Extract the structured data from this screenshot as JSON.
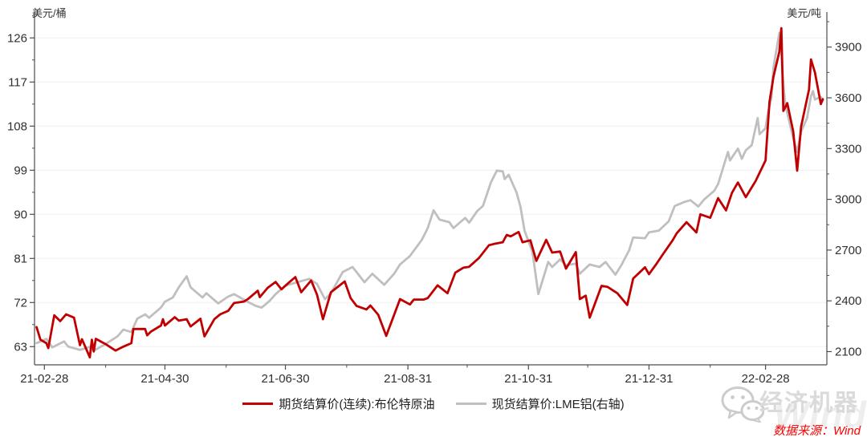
{
  "chart_data": {
    "type": "line",
    "title": "",
    "grid": "horizontal-faint",
    "legend_position": "bottom-center",
    "y_left": {
      "label": "美元/桶",
      "ticks": [
        63,
        72,
        81,
        90,
        99,
        108,
        117,
        126
      ],
      "range_hint": [
        59.3,
        130.5
      ]
    },
    "y_right": {
      "label": "美元/吨",
      "ticks": [
        2100,
        2400,
        2700,
        3000,
        3300,
        3600,
        3900
      ],
      "range_hint": [
        2022,
        4050
      ]
    },
    "x": {
      "ticks": [
        {
          "date": "2021-02-28",
          "label": "21-02-28"
        },
        {
          "date": "2021-04-30",
          "label": "21-04-30"
        },
        {
          "date": "2021-06-30",
          "label": "21-06-30"
        },
        {
          "date": "2021-08-31",
          "label": "21-08-31"
        },
        {
          "date": "2021-10-31",
          "label": "21-10-31"
        },
        {
          "date": "2021-12-31",
          "label": "21-12-31"
        },
        {
          "date": "2022-02-28",
          "label": "22-02-28"
        }
      ],
      "minor_ticks": [
        "2021-03-31",
        "2021-05-31",
        "2021-07-31",
        "2021-09-30",
        "2021-11-30",
        "2022-01-31"
      ]
    },
    "series": [
      {
        "name": "期货结算价(连续):布伦特原油",
        "axis": "left",
        "color": "#C00000",
        "points": [
          [
            "2021-02-24",
            67.0
          ],
          [
            "2021-02-26",
            64.4
          ],
          [
            "2021-03-01",
            63.7
          ],
          [
            "2021-03-02",
            62.7
          ],
          [
            "2021-03-05",
            69.4
          ],
          [
            "2021-03-08",
            68.2
          ],
          [
            "2021-03-11",
            69.6
          ],
          [
            "2021-03-15",
            68.9
          ],
          [
            "2021-03-18",
            63.3
          ],
          [
            "2021-03-19",
            64.5
          ],
          [
            "2021-03-23",
            60.8
          ],
          [
            "2021-03-24",
            64.4
          ],
          [
            "2021-03-25",
            62.0
          ],
          [
            "2021-03-26",
            64.6
          ],
          [
            "2021-03-31",
            63.5
          ],
          [
            "2021-04-05",
            62.2
          ],
          [
            "2021-04-09",
            63.0
          ],
          [
            "2021-04-13",
            63.7
          ],
          [
            "2021-04-14",
            66.6
          ],
          [
            "2021-04-20",
            66.6
          ],
          [
            "2021-04-21",
            65.3
          ],
          [
            "2021-04-23",
            66.1
          ],
          [
            "2021-04-28",
            67.3
          ],
          [
            "2021-04-29",
            68.6
          ],
          [
            "2021-04-30",
            67.3
          ],
          [
            "2021-05-05",
            69.0
          ],
          [
            "2021-05-07",
            68.3
          ],
          [
            "2021-05-11",
            68.6
          ],
          [
            "2021-05-13",
            67.1
          ],
          [
            "2021-05-18",
            68.7
          ],
          [
            "2021-05-20",
            65.1
          ],
          [
            "2021-05-25",
            68.6
          ],
          [
            "2021-05-28",
            69.6
          ],
          [
            "2021-06-01",
            70.3
          ],
          [
            "2021-06-04",
            71.9
          ],
          [
            "2021-06-09",
            72.2
          ],
          [
            "2021-06-11",
            72.7
          ],
          [
            "2021-06-16",
            74.4
          ],
          [
            "2021-06-17",
            73.1
          ],
          [
            "2021-06-21",
            75.0
          ],
          [
            "2021-06-25",
            76.2
          ],
          [
            "2021-06-28",
            74.7
          ],
          [
            "2021-07-01",
            75.8
          ],
          [
            "2021-07-05",
            77.2
          ],
          [
            "2021-07-08",
            74.1
          ],
          [
            "2021-07-13",
            76.5
          ],
          [
            "2021-07-16",
            73.6
          ],
          [
            "2021-07-19",
            68.6
          ],
          [
            "2021-07-23",
            74.1
          ],
          [
            "2021-07-30",
            76.3
          ],
          [
            "2021-08-02",
            72.9
          ],
          [
            "2021-08-05",
            71.3
          ],
          [
            "2021-08-10",
            70.6
          ],
          [
            "2021-08-12",
            71.4
          ],
          [
            "2021-08-16",
            69.5
          ],
          [
            "2021-08-20",
            65.2
          ],
          [
            "2021-08-27",
            72.7
          ],
          [
            "2021-09-01",
            71.6
          ],
          [
            "2021-09-03",
            72.6
          ],
          [
            "2021-09-08",
            72.6
          ],
          [
            "2021-09-10",
            72.9
          ],
          [
            "2021-09-15",
            75.5
          ],
          [
            "2021-09-20",
            73.9
          ],
          [
            "2021-09-24",
            78.1
          ],
          [
            "2021-09-28",
            79.1
          ],
          [
            "2021-10-01",
            79.3
          ],
          [
            "2021-10-06",
            81.1
          ],
          [
            "2021-10-11",
            83.7
          ],
          [
            "2021-10-14",
            84.0
          ],
          [
            "2021-10-18",
            84.3
          ],
          [
            "2021-10-20",
            85.8
          ],
          [
            "2021-10-22",
            85.5
          ],
          [
            "2021-10-26",
            86.4
          ],
          [
            "2021-10-28",
            84.3
          ],
          [
            "2021-11-01",
            84.7
          ],
          [
            "2021-11-04",
            80.5
          ],
          [
            "2021-11-09",
            84.8
          ],
          [
            "2021-11-12",
            82.2
          ],
          [
            "2021-11-16",
            82.4
          ],
          [
            "2021-11-19",
            78.9
          ],
          [
            "2021-11-24",
            82.3
          ],
          [
            "2021-11-26",
            72.7
          ],
          [
            "2021-11-29",
            73.4
          ],
          [
            "2021-12-01",
            68.9
          ],
          [
            "2021-12-07",
            75.4
          ],
          [
            "2021-12-10",
            75.2
          ],
          [
            "2021-12-15",
            73.9
          ],
          [
            "2021-12-20",
            71.5
          ],
          [
            "2021-12-23",
            76.9
          ],
          [
            "2021-12-29",
            79.2
          ],
          [
            "2021-12-31",
            77.8
          ],
          [
            "2022-01-04",
            80.0
          ],
          [
            "2022-01-07",
            81.8
          ],
          [
            "2022-01-12",
            84.7
          ],
          [
            "2022-01-14",
            86.1
          ],
          [
            "2022-01-19",
            88.4
          ],
          [
            "2022-01-24",
            86.3
          ],
          [
            "2022-01-26",
            90.0
          ],
          [
            "2022-01-31",
            89.3
          ],
          [
            "2022-02-04",
            93.3
          ],
          [
            "2022-02-08",
            90.8
          ],
          [
            "2022-02-11",
            94.4
          ],
          [
            "2022-02-14",
            96.5
          ],
          [
            "2022-02-18",
            93.5
          ],
          [
            "2022-02-23",
            96.8
          ],
          [
            "2022-02-28",
            101.0
          ],
          [
            "2022-03-02",
            112.9
          ],
          [
            "2022-03-04",
            118.1
          ],
          [
            "2022-03-07",
            123.2
          ],
          [
            "2022-03-08",
            128.0
          ],
          [
            "2022-03-09",
            111.1
          ],
          [
            "2022-03-11",
            112.7
          ],
          [
            "2022-03-14",
            106.9
          ],
          [
            "2022-03-16",
            98.9
          ],
          [
            "2022-03-18",
            107.9
          ],
          [
            "2022-03-22",
            115.5
          ],
          [
            "2022-03-23",
            121.6
          ],
          [
            "2022-03-25",
            119.0
          ],
          [
            "2022-03-28",
            112.5
          ],
          [
            "2022-03-29",
            113.5
          ]
        ]
      },
      {
        "name": "现货结算价:LME铝(右轴)",
        "axis": "right",
        "color": "#BFBFBF",
        "points": [
          [
            "2021-02-24",
            2150
          ],
          [
            "2021-03-01",
            2175
          ],
          [
            "2021-03-04",
            2125
          ],
          [
            "2021-03-10",
            2160
          ],
          [
            "2021-03-12",
            2130
          ],
          [
            "2021-03-18",
            2110
          ],
          [
            "2021-03-23",
            2128
          ],
          [
            "2021-03-25",
            2105
          ],
          [
            "2021-03-31",
            2145
          ],
          [
            "2021-04-06",
            2190
          ],
          [
            "2021-04-09",
            2230
          ],
          [
            "2021-04-13",
            2215
          ],
          [
            "2021-04-16",
            2295
          ],
          [
            "2021-04-20",
            2320
          ],
          [
            "2021-04-22",
            2300
          ],
          [
            "2021-04-28",
            2360
          ],
          [
            "2021-04-30",
            2395
          ],
          [
            "2021-05-04",
            2420
          ],
          [
            "2021-05-07",
            2480
          ],
          [
            "2021-05-11",
            2545
          ],
          [
            "2021-05-13",
            2480
          ],
          [
            "2021-05-19",
            2420
          ],
          [
            "2021-05-21",
            2445
          ],
          [
            "2021-05-27",
            2385
          ],
          [
            "2021-06-01",
            2425
          ],
          [
            "2021-06-04",
            2440
          ],
          [
            "2021-06-10",
            2400
          ],
          [
            "2021-06-15",
            2370
          ],
          [
            "2021-06-18",
            2360
          ],
          [
            "2021-06-22",
            2400
          ],
          [
            "2021-06-25",
            2440
          ],
          [
            "2021-06-30",
            2490
          ],
          [
            "2021-07-06",
            2510
          ],
          [
            "2021-07-12",
            2530
          ],
          [
            "2021-07-16",
            2500
          ],
          [
            "2021-07-20",
            2410
          ],
          [
            "2021-07-23",
            2445
          ],
          [
            "2021-07-29",
            2570
          ],
          [
            "2021-08-03",
            2600
          ],
          [
            "2021-08-09",
            2510
          ],
          [
            "2021-08-13",
            2560
          ],
          [
            "2021-08-19",
            2495
          ],
          [
            "2021-08-24",
            2560
          ],
          [
            "2021-08-27",
            2615
          ],
          [
            "2021-09-01",
            2665
          ],
          [
            "2021-09-07",
            2760
          ],
          [
            "2021-09-10",
            2830
          ],
          [
            "2021-09-13",
            2935
          ],
          [
            "2021-09-16",
            2880
          ],
          [
            "2021-09-21",
            2865
          ],
          [
            "2021-09-23",
            2830
          ],
          [
            "2021-09-29",
            2890
          ],
          [
            "2021-10-01",
            2862
          ],
          [
            "2021-10-05",
            2930
          ],
          [
            "2021-10-08",
            2962
          ],
          [
            "2021-10-12",
            3100
          ],
          [
            "2021-10-15",
            3170
          ],
          [
            "2021-10-18",
            3165
          ],
          [
            "2021-10-19",
            3120
          ],
          [
            "2021-10-21",
            3145
          ],
          [
            "2021-10-25",
            3040
          ],
          [
            "2021-10-27",
            2955
          ],
          [
            "2021-10-29",
            2815
          ],
          [
            "2021-11-02",
            2690
          ],
          [
            "2021-11-05",
            2440
          ],
          [
            "2021-11-10",
            2630
          ],
          [
            "2021-11-12",
            2600
          ],
          [
            "2021-11-16",
            2645
          ],
          [
            "2021-11-19",
            2610
          ],
          [
            "2021-11-24",
            2620
          ],
          [
            "2021-11-26",
            2560
          ],
          [
            "2021-12-01",
            2615
          ],
          [
            "2021-12-06",
            2600
          ],
          [
            "2021-12-09",
            2630
          ],
          [
            "2021-12-14",
            2555
          ],
          [
            "2021-12-17",
            2610
          ],
          [
            "2021-12-21",
            2700
          ],
          [
            "2021-12-23",
            2775
          ],
          [
            "2021-12-29",
            2770
          ],
          [
            "2021-12-31",
            2805
          ],
          [
            "2022-01-05",
            2815
          ],
          [
            "2022-01-10",
            2870
          ],
          [
            "2022-01-13",
            2960
          ],
          [
            "2022-01-18",
            2985
          ],
          [
            "2022-01-21",
            2995
          ],
          [
            "2022-01-25",
            2958
          ],
          [
            "2022-01-28",
            3000
          ],
          [
            "2022-02-02",
            3050
          ],
          [
            "2022-02-04",
            3090
          ],
          [
            "2022-02-09",
            3280
          ],
          [
            "2022-02-10",
            3230
          ],
          [
            "2022-02-14",
            3300
          ],
          [
            "2022-02-16",
            3240
          ],
          [
            "2022-02-18",
            3290
          ],
          [
            "2022-02-21",
            3320
          ],
          [
            "2022-02-24",
            3480
          ],
          [
            "2022-02-25",
            3385
          ],
          [
            "2022-02-28",
            3420
          ],
          [
            "2022-03-01",
            3500
          ],
          [
            "2022-03-03",
            3600
          ],
          [
            "2022-03-04",
            3780
          ],
          [
            "2022-03-07",
            3985
          ],
          [
            "2022-03-08",
            3860
          ],
          [
            "2022-03-09",
            3680
          ],
          [
            "2022-03-10",
            3560
          ],
          [
            "2022-03-14",
            3360
          ],
          [
            "2022-03-16",
            3280
          ],
          [
            "2022-03-18",
            3400
          ],
          [
            "2022-03-21",
            3480
          ],
          [
            "2022-03-23",
            3610
          ],
          [
            "2022-03-24",
            3640
          ],
          [
            "2022-03-25",
            3590
          ],
          [
            "2022-03-28",
            3605
          ],
          [
            "2022-03-29",
            3585
          ]
        ]
      }
    ]
  },
  "watermark": {
    "brand": "经济机器",
    "wind": "Wind"
  },
  "source_note": "数据来源：Wind",
  "colors": {
    "brent": "#C00000",
    "aluminum": "#BFBFBF",
    "axis": "#4d4d4d",
    "grid": "#f0f0f0",
    "text": "#303030",
    "source": "#fe0000"
  }
}
